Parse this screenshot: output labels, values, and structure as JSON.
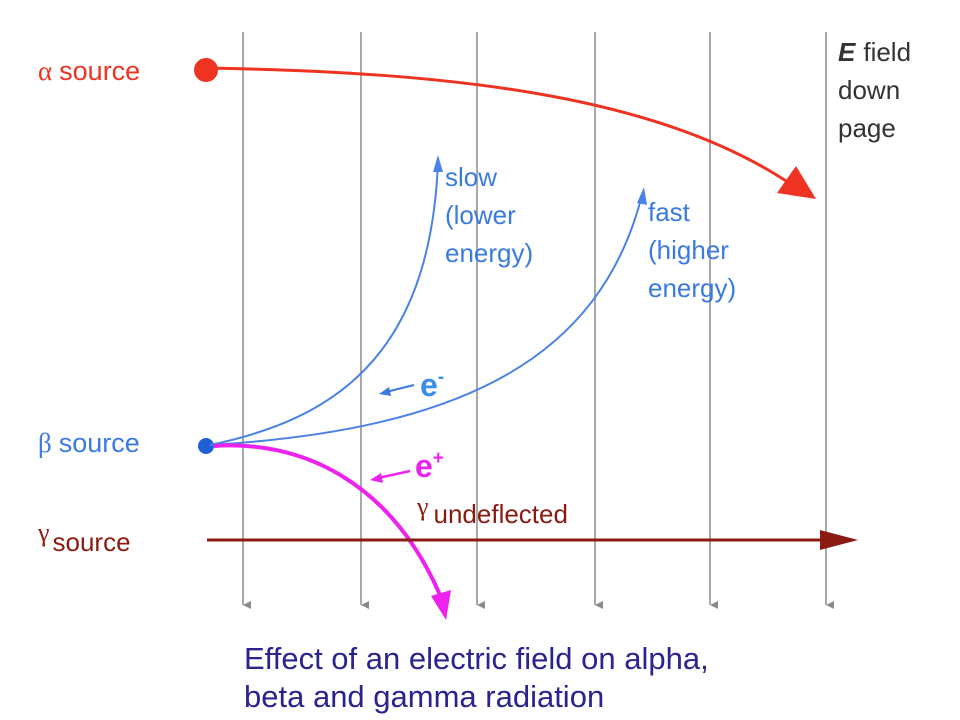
{
  "colors": {
    "alpha": "#ee3322",
    "beta": "#3a7be0",
    "positron": "#ee22ee",
    "gamma": "#8b1a10",
    "field_lines": "#a8a8a8",
    "field_label": "#333333",
    "caption": "#2a2390"
  },
  "field_label": {
    "symbol": "E",
    "line1": "field",
    "line2": "down",
    "line3": "page"
  },
  "alpha": {
    "symbol": "α",
    "label": "source"
  },
  "beta": {
    "symbol": "β",
    "label": "source"
  },
  "gamma": {
    "symbol": "γ",
    "label": "source",
    "path_symbol": "γ",
    "path_label": "undeflected"
  },
  "slow": {
    "line1": "slow",
    "line2": "(lower",
    "line3": "energy)"
  },
  "fast": {
    "line1": "fast",
    "line2": "(higher",
    "line3": "energy)"
  },
  "electron": {
    "base": "e",
    "sup": "-"
  },
  "positron": {
    "base": "e",
    "sup": "+"
  },
  "caption": {
    "line1": "Effect of an electric field on alpha,",
    "line2": "beta and gamma radiation"
  }
}
